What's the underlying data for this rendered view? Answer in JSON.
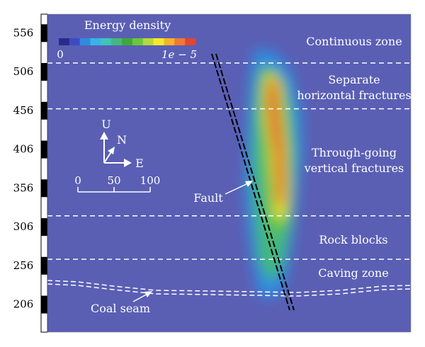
{
  "chart_data": {
    "type": "heatmap",
    "colorbar": {
      "title": "Energy density",
      "min_label": "0",
      "max_label": "1e − 5",
      "colors": [
        "#2b2a8c",
        "#3c4cc0",
        "#2f8be0",
        "#37b3e6",
        "#3fc4b6",
        "#43b87c",
        "#3ea83c",
        "#6cc63a",
        "#b8d83a",
        "#f4ea2a",
        "#f7b32b",
        "#ee7a33",
        "#e24530"
      ]
    },
    "background_color": "#5a5fb4",
    "y_axis": {
      "ticks": [
        556,
        506,
        456,
        406,
        356,
        306,
        256,
        206
      ],
      "range": [
        170,
        580
      ]
    },
    "zones": [
      {
        "label": "Continuous zone",
        "boundary_y": 517
      },
      {
        "label_lines": [
          "Separate",
          "horizontal fractures"
        ],
        "boundary_y": 458
      },
      {
        "label_lines": [
          "Through-going",
          "vertical fractures"
        ],
        "boundary_y": 320
      },
      {
        "label": "Rock blocks",
        "boundary_y": 264
      },
      {
        "label": "Caving zone"
      }
    ],
    "annotations": {
      "fault_label": "Fault",
      "coal_seam_label": "Coal seam"
    },
    "orientation": {
      "up": "U",
      "north": "N",
      "east": "E"
    },
    "scale_bar": {
      "labels": [
        "0",
        "50",
        "100"
      ]
    },
    "energy_field": {
      "x_range": [
        0,
        100
      ],
      "y_range": [
        170,
        580
      ],
      "plumes": [
        {
          "level": 0.18,
          "points": [
            [
              43,
              536
            ],
            [
              57,
              531
            ],
            [
              67,
              506
            ],
            [
              74,
              456
            ],
            [
              75,
              406
            ],
            [
              72,
              356
            ],
            [
              69,
              306
            ],
            [
              66,
              262
            ],
            [
              63,
              234
            ],
            [
              58,
              216
            ],
            [
              49,
              213
            ],
            [
              44,
              226
            ],
            [
              41,
              262
            ],
            [
              38,
              306
            ],
            [
              36,
              356
            ],
            [
              37,
              406
            ],
            [
              38,
              456
            ],
            [
              40,
              506
            ]
          ]
        },
        {
          "level": 0.4,
          "points": [
            [
              47,
              516
            ],
            [
              56,
              510
            ],
            [
              63,
              496
            ],
            [
              68,
              456
            ],
            [
              70,
              406
            ],
            [
              69,
              356
            ],
            [
              67,
              306
            ],
            [
              62,
              258
            ],
            [
              56,
              236
            ],
            [
              50,
              240
            ],
            [
              45,
              264
            ],
            [
              43,
              306
            ],
            [
              41,
              356
            ],
            [
              41,
              406
            ],
            [
              42,
              456
            ],
            [
              44,
              496
            ]
          ]
        },
        {
          "level": 0.62,
          "points": [
            [
              50,
              509
            ],
            [
              58,
              505
            ],
            [
              62,
              490
            ],
            [
              64,
              456
            ],
            [
              66,
              406
            ],
            [
              67,
              356
            ],
            [
              66,
              314
            ],
            [
              61,
              298
            ],
            [
              54,
              302
            ],
            [
              52,
              330
            ],
            [
              49,
              380
            ],
            [
              47,
              426
            ],
            [
              45,
              466
            ],
            [
              47,
              500
            ]
          ]
        },
        {
          "level": 0.78,
          "points": [
            [
              52,
              503
            ],
            [
              57,
              500
            ],
            [
              60,
              486
            ],
            [
              61,
              456
            ],
            [
              64,
              406
            ],
            [
              65,
              356
            ],
            [
              64,
              326
            ],
            [
              60,
              316
            ],
            [
              56,
              320
            ],
            [
              55,
              356
            ],
            [
              53,
              406
            ],
            [
              50,
              440
            ],
            [
              49,
              476
            ],
            [
              50,
              496
            ]
          ]
        },
        {
          "level": 0.96,
          "points": [
            [
              53,
              498
            ],
            [
              57,
              495
            ],
            [
              58,
              480
            ],
            [
              59,
              456
            ],
            [
              62,
              406
            ],
            [
              63,
              360
            ],
            [
              62,
              334
            ],
            [
              58,
              330
            ],
            [
              57,
              360
            ],
            [
              56,
              400
            ],
            [
              53,
              430
            ],
            [
              51,
              470
            ],
            [
              52,
              492
            ]
          ]
        }
      ]
    }
  }
}
